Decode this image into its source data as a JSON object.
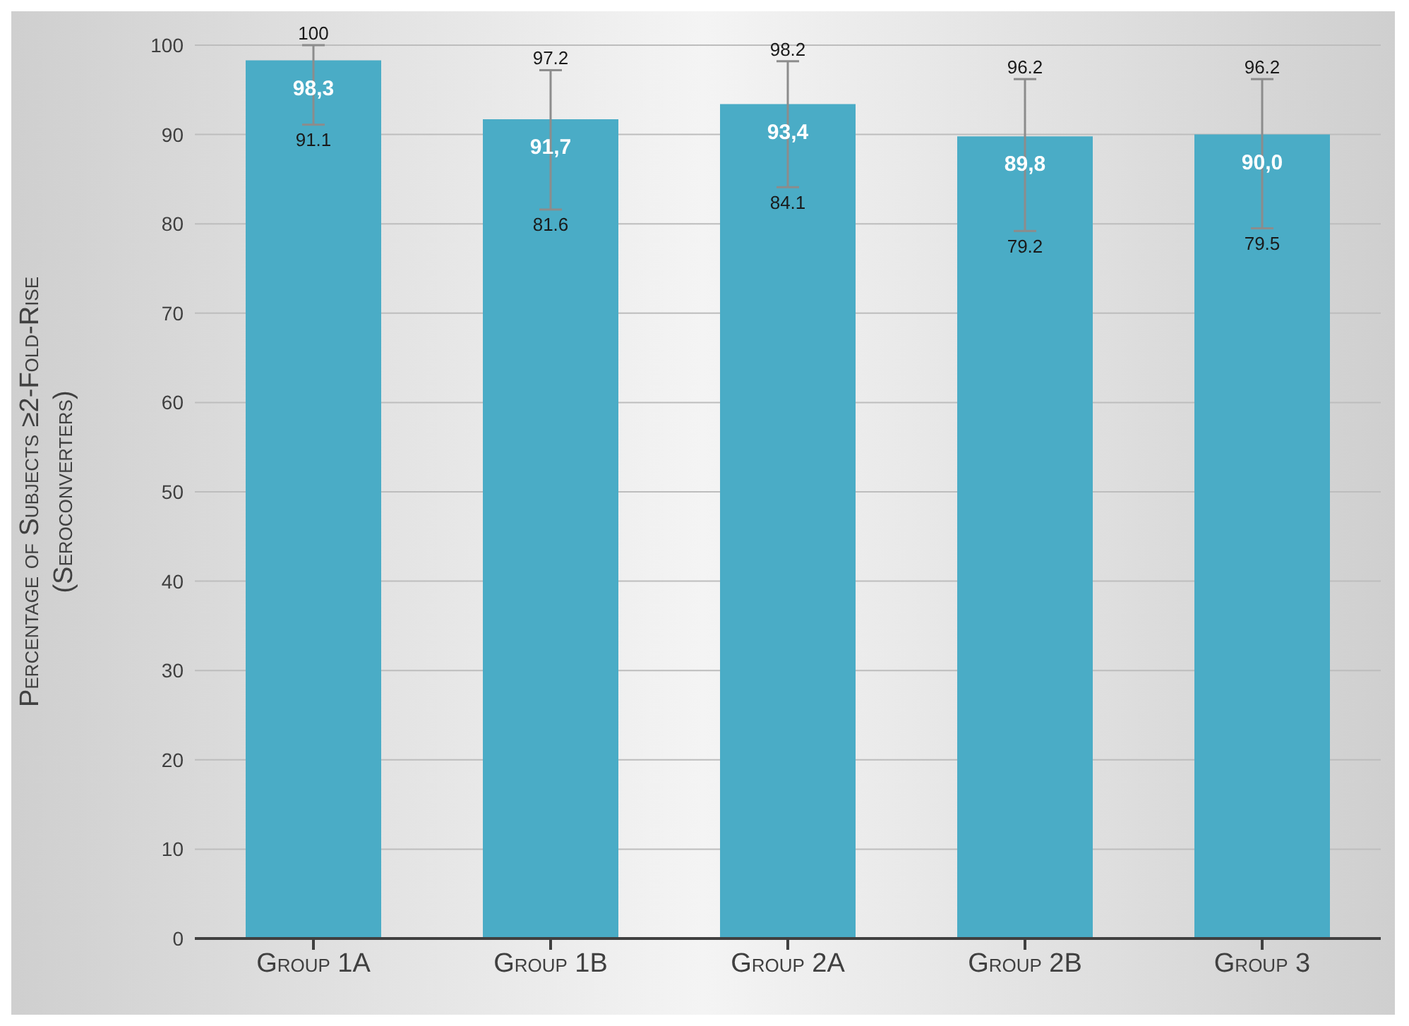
{
  "chart_data": {
    "type": "bar",
    "ylabel": "Percentage of Subjects ≥2-Fold-Rise\n(Seroconverters)",
    "categories": [
      "Group 1A",
      "Group 1B",
      "Group 2A",
      "Group 2B",
      "Group 3"
    ],
    "values": [
      98.3,
      91.7,
      93.4,
      89.8,
      90.0
    ],
    "value_labels": [
      "98,3",
      "91,7",
      "93,4",
      "89,8",
      "90,0"
    ],
    "errors": [
      [
        91.1,
        100
      ],
      [
        81.6,
        97.2
      ],
      [
        84.1,
        98.2
      ],
      [
        79.2,
        96.2
      ],
      [
        79.5,
        96.2
      ]
    ],
    "color": "#4aacc6",
    "ylim": [
      0,
      100
    ],
    "yticks": [
      0,
      10,
      20,
      30,
      40,
      50,
      60,
      70,
      80,
      90,
      100
    ],
    "grid": "y",
    "legend": false,
    "annotations": [
      {
        "text": "100",
        "x": "Group 1A",
        "y": 100
      },
      {
        "text": "91.1",
        "x": "Group 1A",
        "y": 91.1
      },
      {
        "text": "97.2",
        "x": "Group 1B",
        "y": 97.2
      },
      {
        "text": "81.6",
        "x": "Group 1B",
        "y": 81.6
      },
      {
        "text": "98.2",
        "x": "Group 2A",
        "y": 98.2
      },
      {
        "text": "84.1",
        "x": "Group 2A",
        "y": 84.1
      },
      {
        "text": "96.2",
        "x": "Group 2B",
        "y": 96.2
      },
      {
        "text": "79.2",
        "x": "Group 2B",
        "y": 79.2
      },
      {
        "text": "96.2",
        "x": "Group 3",
        "y": 96.2
      },
      {
        "text": "79.5",
        "x": "Group 3",
        "y": 79.5
      }
    ]
  }
}
